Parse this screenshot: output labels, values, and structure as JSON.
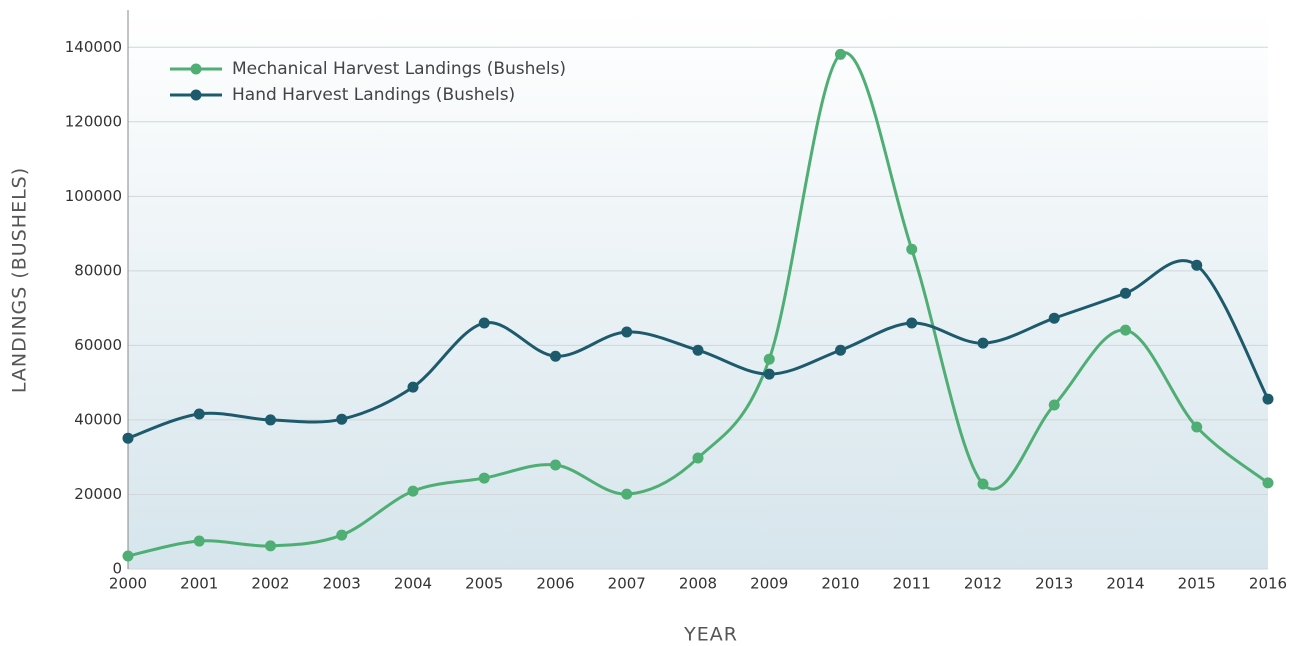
{
  "chart_data": {
    "type": "line",
    "xlabel": "YEAR",
    "ylabel": "LANDINGS (BUSHELS)",
    "x": [
      2000,
      2001,
      2002,
      2003,
      2004,
      2005,
      2006,
      2007,
      2008,
      2009,
      2010,
      2011,
      2012,
      2013,
      2014,
      2015,
      2016
    ],
    "series": [
      {
        "name": "Mechanical Harvest Landings (Bushels)",
        "color": "#4fae74",
        "values": [
          3500,
          7500,
          6200,
          9100,
          20900,
          24400,
          27900,
          20100,
          29800,
          56300,
          138100,
          85800,
          22800,
          44000,
          64100,
          38100,
          23100
        ]
      },
      {
        "name": "Hand Harvest Landings (Bushels)",
        "color": "#1d5a6c",
        "values": [
          35100,
          41600,
          40000,
          40200,
          48800,
          66000,
          57100,
          63600,
          58700,
          52300,
          58700,
          66000,
          60600,
          67300,
          74000,
          81500,
          45600
        ]
      }
    ],
    "xlim": [
      2000,
      2016
    ],
    "xticks": [
      2000,
      2001,
      2002,
      2003,
      2004,
      2005,
      2006,
      2007,
      2008,
      2009,
      2010,
      2011,
      2012,
      2013,
      2014,
      2015,
      2016
    ],
    "ylim": [
      0,
      150000
    ],
    "yticks": [
      0,
      20000,
      40000,
      60000,
      80000,
      100000,
      120000,
      140000
    ],
    "grid": true,
    "legend": "upper left"
  }
}
